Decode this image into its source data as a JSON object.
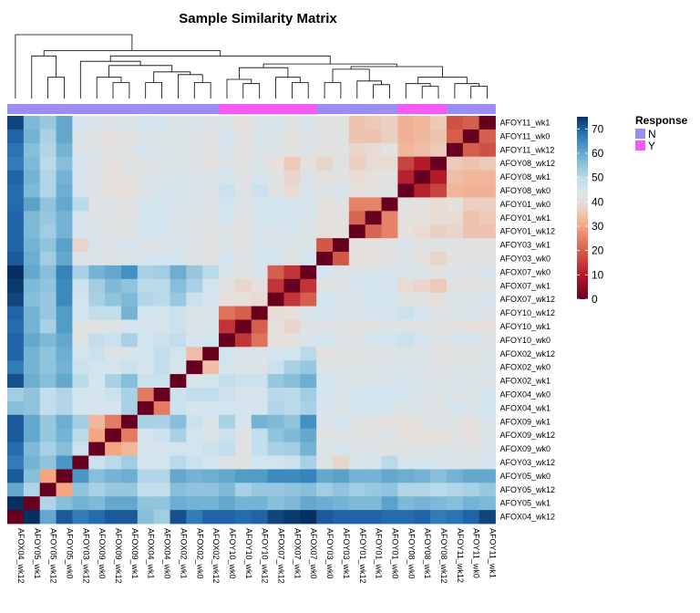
{
  "chart_data": {
    "type": "heatmap",
    "title": "Sample Similarity Matrix",
    "column_labels": [
      "AFOX04_wk12",
      "AFOY05_wk1",
      "AFOY05_wk12",
      "AFOY05_wk0",
      "AFOY03_wk12",
      "AFOX09_wk0",
      "AFOX09_wk12",
      "AFOX09_wk1",
      "AFOX04_wk1",
      "AFOX04_wk0",
      "AFOX02_wk1",
      "AFOX02_wk0",
      "AFOX02_wk12",
      "AFOY10_wk0",
      "AFOY10_wk1",
      "AFOY10_wk12",
      "AFOX07_wk12",
      "AFOX07_wk1",
      "AFOX07_wk0",
      "AFOY03_wk0",
      "AFOY03_wk1",
      "AFOY01_wk12",
      "AFOY01_wk1",
      "AFOY01_wk0",
      "AFOY08_wk0",
      "AFOY08_wk1",
      "AFOY08_wk12",
      "AFOY11_wk12",
      "AFOY11_wk0",
      "AFOY11_wk1"
    ],
    "row_labels": [
      "AFOY11_wk1",
      "AFOY11_wk0",
      "AFOY11_wk12",
      "AFOY08_wk12",
      "AFOY08_wk1",
      "AFOY08_wk0",
      "AFOY01_wk0",
      "AFOY01_wk1",
      "AFOY01_wk12",
      "AFOY03_wk1",
      "AFOY03_wk0",
      "AFOX07_wk0",
      "AFOX07_wk1",
      "AFOX07_wk12",
      "AFOY10_wk12",
      "AFOY10_wk1",
      "AFOY10_wk0",
      "AFOX02_wk12",
      "AFOX02_wk0",
      "AFOX02_wk1",
      "AFOX04_wk0",
      "AFOX04_wk1",
      "AFOX09_wk1",
      "AFOX09_wk12",
      "AFOX09_wk0",
      "AFOY03_wk12",
      "AFOY05_wk0",
      "AFOY05_wk12",
      "AFOY05_wk1",
      "AFOX04_wk12"
    ],
    "column_response": [
      "N",
      "N",
      "N",
      "N",
      "N",
      "N",
      "N",
      "N",
      "N",
      "N",
      "N",
      "N",
      "N",
      "Y",
      "Y",
      "Y",
      "Y",
      "Y",
      "Y",
      "N",
      "N",
      "N",
      "N",
      "N",
      "Y",
      "Y",
      "Y",
      "N",
      "N",
      "N"
    ],
    "column_dendrogram_present": true,
    "colorbar": {
      "min": 0,
      "max": 75,
      "ticks": [
        0,
        10,
        20,
        30,
        40,
        50,
        60,
        70
      ]
    },
    "legend": {
      "title": "Response",
      "entries": [
        {
          "label": "N",
          "color": "#9C8CF5"
        },
        {
          "label": "Y",
          "color": "#F55AF5"
        }
      ]
    },
    "colors": {
      "N": "#9C8CF5",
      "Y": "#F55AF5"
    },
    "values": [
      [
        73,
        57,
        54,
        60,
        46,
        45,
        44,
        45,
        47,
        46,
        44,
        45,
        43,
        44,
        40,
        44,
        46,
        42,
        45,
        41,
        42,
        35,
        36,
        37,
        32,
        33,
        36,
        18,
        20,
        0
      ],
      [
        70,
        58,
        52,
        60,
        44,
        42,
        40,
        41,
        44,
        44,
        44,
        44,
        42,
        46,
        41,
        45,
        44,
        41,
        44,
        42,
        42,
        35,
        35,
        37,
        32,
        33,
        35,
        20,
        0,
        20
      ],
      [
        68,
        56,
        51,
        58,
        44,
        44,
        42,
        43,
        46,
        44,
        45,
        43,
        42,
        45,
        41,
        44,
        44,
        41,
        44,
        41,
        42,
        38,
        39,
        41,
        33,
        34,
        36,
        0,
        20,
        18
      ],
      [
        67,
        57,
        50,
        56,
        46,
        43,
        40,
        43,
        42,
        44,
        43,
        43,
        41,
        44,
        42,
        44,
        40,
        36,
        41,
        38,
        42,
        37,
        39,
        39,
        16,
        10,
        0,
        36,
        35,
        36
      ],
      [
        70,
        58,
        51,
        58,
        46,
        42,
        40,
        42,
        44,
        45,
        45,
        44,
        44,
        46,
        42,
        46,
        42,
        38,
        44,
        41,
        42,
        39,
        40,
        41,
        11,
        0,
        10,
        34,
        33,
        33
      ],
      [
        69,
        57,
        51,
        59,
        46,
        43,
        40,
        40,
        44,
        46,
        46,
        45,
        44,
        48,
        43,
        48,
        43,
        39,
        45,
        43,
        45,
        40,
        41,
        42,
        0,
        11,
        16,
        33,
        32,
        32
      ],
      [
        69,
        61,
        55,
        60,
        50,
        42,
        44,
        41,
        46,
        47,
        45,
        44,
        43,
        47,
        44,
        46,
        47,
        46,
        46,
        41,
        42,
        25,
        25,
        0,
        42,
        41,
        39,
        41,
        37,
        37
      ],
      [
        70,
        57,
        54,
        58,
        46,
        44,
        42,
        41,
        47,
        47,
        45,
        44,
        43,
        46,
        42,
        46,
        47,
        47,
        45,
        40,
        41,
        21,
        0,
        25,
        41,
        40,
        39,
        39,
        35,
        36
      ],
      [
        70,
        57,
        53,
        58,
        46,
        44,
        42,
        43,
        47,
        47,
        44,
        44,
        42,
        44,
        41,
        45,
        45,
        46,
        44,
        40,
        41,
        0,
        21,
        25,
        40,
        39,
        37,
        38,
        35,
        35
      ],
      [
        70,
        58,
        55,
        61,
        38,
        46,
        44,
        46,
        44,
        44,
        45,
        44,
        42,
        44,
        42,
        45,
        45,
        43,
        44,
        19,
        0,
        41,
        41,
        42,
        45,
        42,
        42,
        42,
        42,
        42
      ],
      [
        71,
        59,
        53,
        60,
        43,
        44,
        42,
        44,
        46,
        47,
        47,
        43,
        41,
        47,
        43,
        47,
        47,
        42,
        46,
        0,
        19,
        40,
        40,
        41,
        43,
        41,
        38,
        41,
        42,
        41
      ],
      [
        75,
        60,
        56,
        66,
        52,
        58,
        60,
        64,
        52,
        53,
        59,
        54,
        50,
        45,
        42,
        45,
        20,
        14,
        0,
        46,
        44,
        44,
        45,
        46,
        45,
        44,
        41,
        44,
        44,
        45
      ],
      [
        74,
        57,
        55,
        65,
        48,
        53,
        57,
        55,
        50,
        50,
        56,
        52,
        47,
        41,
        38,
        40,
        14,
        0,
        14,
        42,
        43,
        46,
        47,
        46,
        39,
        38,
        36,
        41,
        41,
        42
      ],
      [
        73,
        56,
        54,
        65,
        47,
        52,
        55,
        57,
        51,
        50,
        54,
        48,
        46,
        40,
        40,
        39,
        0,
        14,
        20,
        47,
        45,
        45,
        47,
        47,
        43,
        42,
        40,
        44,
        44,
        46
      ],
      [
        70,
        58,
        54,
        62,
        47,
        49,
        49,
        58,
        47,
        46,
        48,
        44,
        45,
        23,
        20,
        0,
        39,
        40,
        45,
        47,
        45,
        45,
        46,
        46,
        48,
        46,
        44,
        44,
        45,
        44
      ],
      [
        69,
        58,
        52,
        62,
        42,
        42,
        43,
        46,
        46,
        45,
        48,
        44,
        45,
        14,
        0,
        20,
        40,
        38,
        42,
        43,
        42,
        41,
        42,
        44,
        43,
        42,
        42,
        41,
        40,
        40
      ],
      [
        70,
        60,
        57,
        60,
        43,
        49,
        48,
        52,
        47,
        48,
        49,
        46,
        47,
        0,
        14,
        23,
        40,
        41,
        45,
        47,
        44,
        44,
        46,
        47,
        48,
        46,
        44,
        45,
        46,
        44
      ],
      [
        70,
        58,
        55,
        59,
        47,
        48,
        44,
        45,
        47,
        49,
        47,
        34,
        0,
        47,
        45,
        45,
        46,
        47,
        50,
        41,
        42,
        42,
        43,
        43,
        44,
        44,
        41,
        42,
        42,
        43
      ],
      [
        67,
        58,
        55,
        58,
        48,
        47,
        47,
        48,
        46,
        49,
        45,
        0,
        34,
        46,
        44,
        44,
        48,
        52,
        54,
        43,
        44,
        44,
        44,
        44,
        45,
        43,
        43,
        43,
        44,
        45
      ],
      [
        72,
        59,
        56,
        60,
        50,
        47,
        52,
        56,
        48,
        48,
        0,
        45,
        47,
        49,
        48,
        48,
        54,
        56,
        59,
        47,
        45,
        44,
        45,
        45,
        46,
        45,
        43,
        45,
        44,
        44
      ],
      [
        53,
        55,
        49,
        51,
        47,
        46,
        48,
        52,
        24,
        0,
        48,
        49,
        49,
        48,
        45,
        46,
        50,
        50,
        53,
        47,
        44,
        47,
        47,
        47,
        46,
        45,
        44,
        44,
        44,
        46
      ],
      [
        56,
        55,
        49,
        51,
        46,
        46,
        46,
        52,
        0,
        24,
        48,
        46,
        47,
        47,
        46,
        47,
        51,
        50,
        52,
        46,
        44,
        47,
        47,
        46,
        44,
        44,
        42,
        46,
        44,
        47
      ],
      [
        71,
        60,
        54,
        59,
        53,
        33,
        24,
        0,
        52,
        52,
        56,
        48,
        45,
        52,
        46,
        58,
        57,
        55,
        64,
        44,
        46,
        43,
        41,
        41,
        40,
        42,
        43,
        43,
        41,
        45
      ],
      [
        71,
        60,
        54,
        58,
        50,
        30,
        0,
        24,
        46,
        48,
        52,
        47,
        44,
        48,
        43,
        49,
        55,
        57,
        60,
        42,
        44,
        42,
        42,
        44,
        40,
        40,
        40,
        42,
        40,
        44
      ],
      [
        69,
        57,
        52,
        56,
        48,
        0,
        30,
        33,
        46,
        46,
        47,
        47,
        48,
        49,
        42,
        49,
        52,
        53,
        58,
        44,
        46,
        44,
        44,
        42,
        43,
        42,
        43,
        44,
        42,
        45
      ],
      [
        67,
        58,
        55,
        63,
        0,
        48,
        50,
        53,
        46,
        47,
        50,
        48,
        47,
        43,
        42,
        47,
        47,
        48,
        52,
        43,
        38,
        46,
        46,
        50,
        46,
        46,
        46,
        44,
        44,
        46
      ],
      [
        71,
        56,
        30,
        0,
        63,
        56,
        58,
        59,
        51,
        51,
        60,
        58,
        59,
        60,
        62,
        62,
        65,
        65,
        66,
        60,
        61,
        58,
        58,
        60,
        59,
        58,
        56,
        58,
        60,
        60
      ],
      [
        60,
        51,
        0,
        30,
        55,
        52,
        54,
        54,
        49,
        49,
        56,
        55,
        55,
        57,
        52,
        54,
        54,
        55,
        56,
        53,
        55,
        53,
        54,
        55,
        51,
        51,
        50,
        51,
        52,
        54
      ],
      [
        75,
        0,
        51,
        56,
        58,
        57,
        60,
        60,
        55,
        55,
        59,
        58,
        58,
        60,
        58,
        58,
        56,
        57,
        60,
        59,
        58,
        57,
        57,
        61,
        57,
        58,
        57,
        56,
        58,
        57
      ],
      [
        0,
        75,
        60,
        71,
        67,
        69,
        71,
        71,
        56,
        53,
        72,
        67,
        70,
        70,
        69,
        70,
        73,
        74,
        75,
        71,
        70,
        70,
        70,
        69,
        69,
        70,
        67,
        68,
        70,
        73
      ]
    ]
  }
}
